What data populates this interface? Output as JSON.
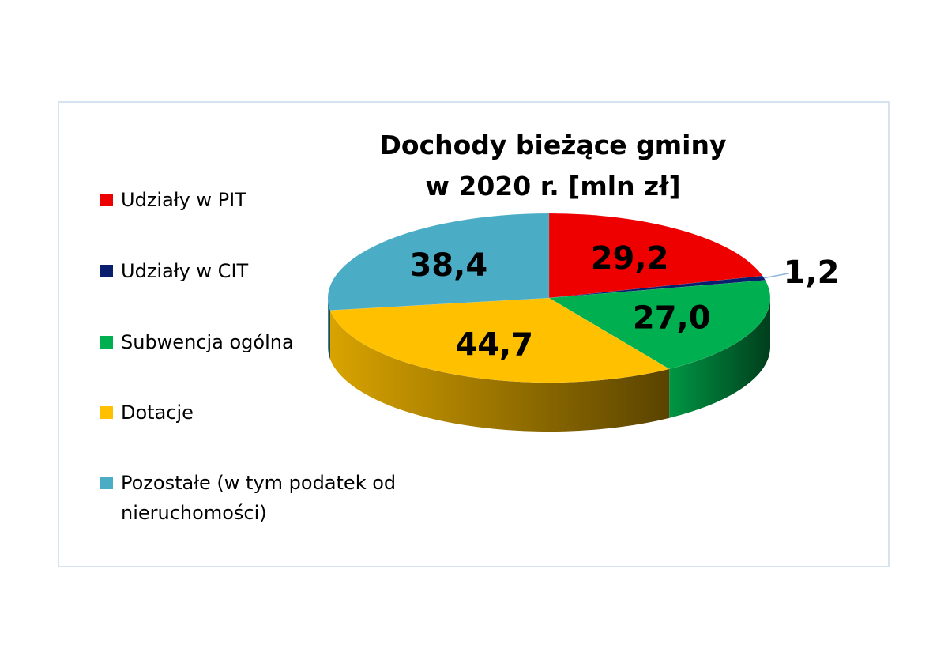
{
  "chart_data": {
    "type": "pie",
    "title": [
      "Dochody bieżące gminy",
      "w 2020 r. [mln zł]"
    ],
    "categories": [
      "Udziały w PIT",
      "Udziały w CIT",
      "Subwencja ogólna",
      "Dotacje",
      "Pozostałe (w tym podatek od nieruchomości)"
    ],
    "values": [
      29.2,
      1.2,
      27.0,
      44.7,
      38.4
    ],
    "data_labels": [
      "29,2",
      "1,2",
      "27,0",
      "44,7",
      "38,4"
    ],
    "colors": [
      "#ee0000",
      "#0a1e6e",
      "#00b050",
      "#ffc000",
      "#4bacc6"
    ],
    "legend_position": "left",
    "style": "3d"
  }
}
